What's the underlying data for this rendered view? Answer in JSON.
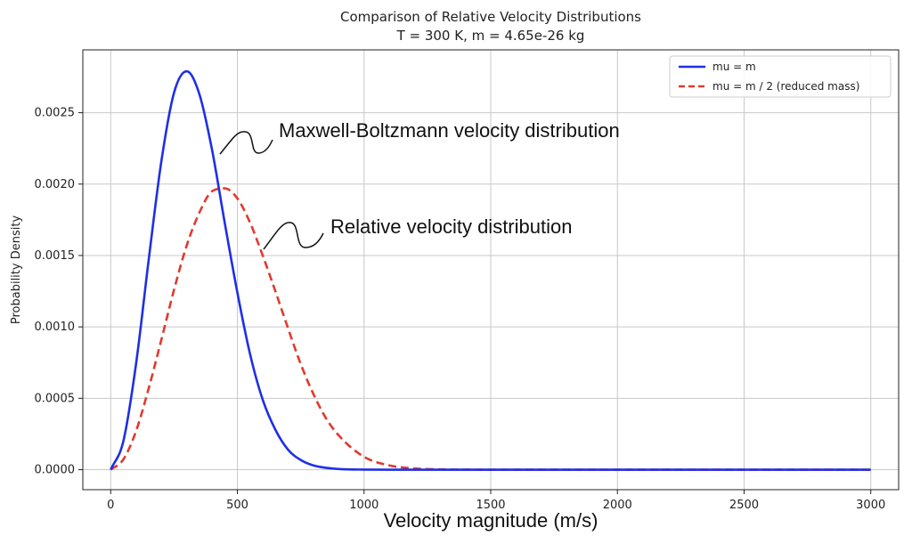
{
  "chart_data": {
    "type": "line",
    "title": "Comparison of Relative Velocity Distributions",
    "subtitle": "T = 300 K, m = 4.65e-26 kg",
    "xlabel": "Velocity magnitude (m/s)",
    "ylabel": "Probability Density",
    "xlim": [
      -110,
      3110
    ],
    "ylim": [
      -0.00014,
      0.00294
    ],
    "xticks": [
      0,
      500,
      1000,
      1500,
      2000,
      2500,
      3000
    ],
    "yticks": [
      0.0,
      0.0005,
      0.001,
      0.0015,
      0.002,
      0.0025
    ],
    "ytick_labels": [
      "0.0000",
      "0.0005",
      "0.0010",
      "0.0015",
      "0.0020",
      "0.0025"
    ],
    "grid": true,
    "legend_position": "top-right",
    "series": [
      {
        "name": "mu = m",
        "color": "#1f2fe6",
        "style": "solid",
        "x": [
          0,
          50,
          100,
          150,
          200,
          250,
          300,
          350,
          400,
          450,
          500,
          550,
          600,
          650,
          700,
          750,
          800,
          900,
          1000,
          1100,
          1200,
          1500,
          2000,
          2500,
          3000
        ],
        "y": [
          0.0,
          0.0002,
          0.00074,
          0.00147,
          0.00216,
          0.00264,
          0.00279,
          0.00263,
          0.00224,
          0.00173,
          0.00124,
          0.00081,
          0.00049,
          0.00028,
          0.00014,
          6.8e-05,
          3e-05,
          5e-06,
          7e-07,
          0.0,
          0.0,
          0.0,
          0.0,
          0.0,
          0.0
        ]
      },
      {
        "name": "mu = m / 2 (reduced mass)",
        "color": "#e03a2e",
        "style": "dashed",
        "x": [
          0,
          50,
          100,
          150,
          200,
          250,
          300,
          350,
          400,
          450,
          500,
          550,
          600,
          650,
          700,
          750,
          800,
          850,
          900,
          1000,
          1100,
          1200,
          1300,
          1500,
          2000,
          2500,
          3000
        ],
        "y": [
          0.0,
          7.2e-05,
          0.00027,
          0.00057,
          0.00091,
          0.00126,
          0.00157,
          0.0018,
          0.00195,
          0.00197,
          0.0019,
          0.00173,
          0.0015,
          0.00125,
          0.00099,
          0.00074,
          0.00053,
          0.00036,
          0.00024,
          9e-05,
          3e-05,
          8.5e-06,
          2.2e-06,
          1e-07,
          0.0,
          0.0,
          0.0
        ]
      }
    ],
    "annotations": [
      {
        "text": "Maxwell-Boltzmann velocity distribution",
        "target_series": 0
      },
      {
        "text": "Relative velocity distribution",
        "target_series": 1
      }
    ]
  }
}
